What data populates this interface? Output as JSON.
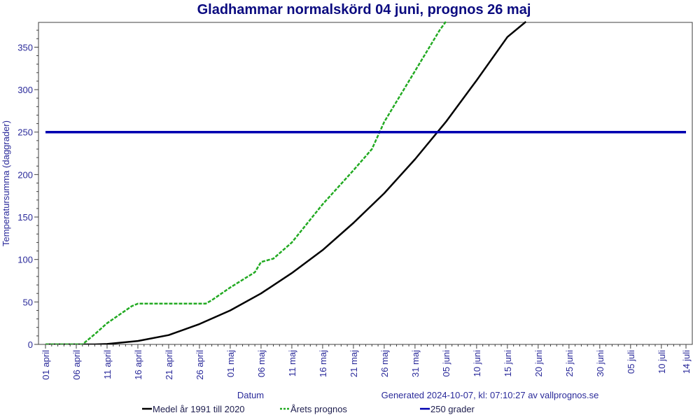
{
  "chart_data": {
    "type": "line",
    "title": "Gladhammar normalskörd 04 juni, prognos 26 maj",
    "xlabel": "Datum",
    "ylabel": "Temperatursumma (daggrader)",
    "footer": "Generated 2024-10-07, kl: 07:10:27 av vallprognos.se",
    "ylim": [
      0,
      380
    ],
    "xlim_days": [
      0,
      105
    ],
    "y_ticks": [
      0,
      50,
      100,
      150,
      200,
      250,
      300,
      350
    ],
    "x_tick_labels": [
      "01 april",
      "06 april",
      "11 april",
      "16 april",
      "21 april",
      "26 april",
      "01 maj",
      "06 maj",
      "11 maj",
      "16 maj",
      "21 maj",
      "26 maj",
      "31 maj",
      "05 juni",
      "10 juni",
      "15 juni",
      "20 juni",
      "25 juni",
      "30 juni",
      "05 juli",
      "10 juli",
      "14 juli"
    ],
    "x_tick_days": [
      0,
      5,
      10,
      15,
      20,
      25,
      30,
      35,
      40,
      45,
      50,
      55,
      60,
      65,
      70,
      75,
      80,
      85,
      90,
      95,
      100,
      104
    ],
    "grid": false,
    "legend_position": "bottom",
    "series": [
      {
        "name": "Medel år 1991 till 2020",
        "color": "#000000",
        "style": "solid",
        "x": [
          "01 april",
          "06 april",
          "09 april",
          "11 april",
          "16 april",
          "21 april",
          "26 april",
          "01 maj",
          "06 maj",
          "11 maj",
          "16 maj",
          "21 maj",
          "26 maj",
          "31 maj",
          "05 juni",
          "10 juni",
          "15 juni",
          "18 juni"
        ],
        "values": [
          0,
          0,
          0,
          0.5,
          4,
          11,
          24,
          40,
          60,
          84,
          111,
          143,
          178,
          218,
          262,
          311,
          362,
          380
        ]
      },
      {
        "name": "Årets prognos",
        "color": "#22aa22",
        "style": "dashed",
        "x": [
          "01 april",
          "06 april",
          "07 april",
          "09 april",
          "11 april",
          "14 april",
          "15 april",
          "16 april",
          "21 april",
          "26 april",
          "27 april",
          "28 april",
          "01 maj",
          "05 maj",
          "06 maj",
          "08 maj",
          "11 maj",
          "16 maj",
          "21 maj",
          "24 maj",
          "26 maj",
          "31 maj",
          "04 juni",
          "05 juni"
        ],
        "values": [
          0,
          0,
          0,
          12,
          25,
          40,
          45,
          48,
          48,
          48,
          48,
          52,
          67,
          85,
          97,
          101,
          120,
          165,
          205,
          230,
          262,
          322,
          370,
          380
        ]
      },
      {
        "name": "250 grader",
        "color": "#0000b0",
        "style": "solid",
        "x": [
          "01 april",
          "14 juli"
        ],
        "values": [
          250,
          250
        ]
      }
    ]
  }
}
